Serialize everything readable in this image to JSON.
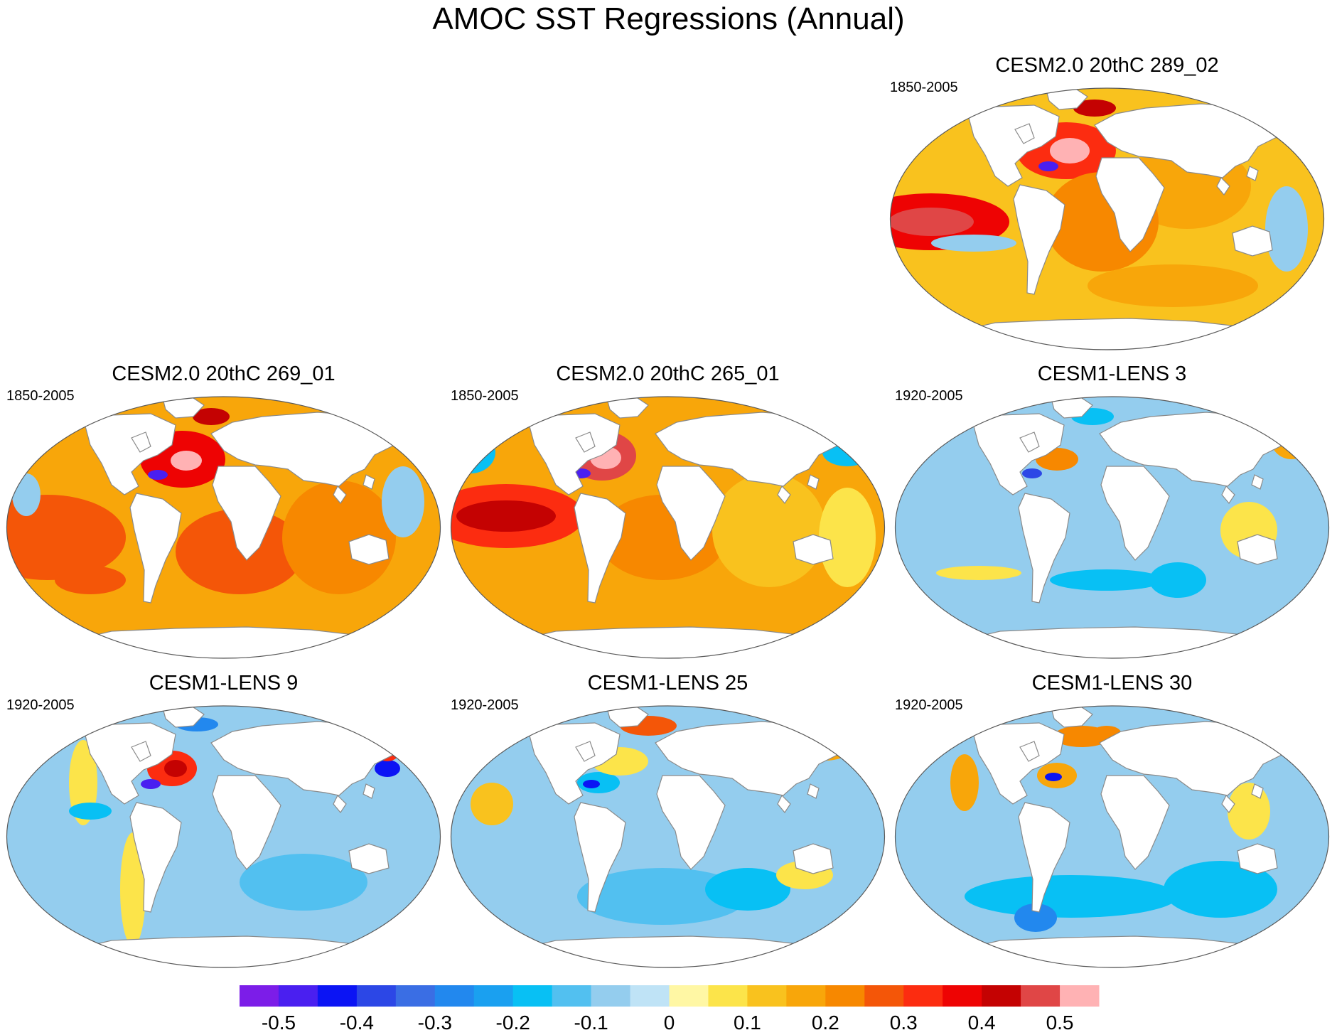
{
  "figure": {
    "title": "AMOC SST Regressions (Annual)"
  },
  "chart_data": [
    {
      "type": "heatmap",
      "panel": "top-right",
      "title": "CESM2.0 20thC 289_02",
      "period": "1850-2005",
      "projection": "Robinson (global)",
      "variable": "SST regression on AMOC",
      "features": [
        {
          "region": "Subpolar North Atlantic",
          "value": 0.45
        },
        {
          "region": "Nordic Seas",
          "value": 0.4
        },
        {
          "region": "Gulf Stream (off US coast)",
          "value": -0.5
        },
        {
          "region": "Eastern tropical Pacific",
          "value": 0.35
        },
        {
          "region": "Tropical Atlantic",
          "value": 0.15
        },
        {
          "region": "Indian Ocean",
          "value": 0.15
        },
        {
          "region": "Southern Ocean",
          "value": 0.1
        }
      ]
    },
    {
      "type": "heatmap",
      "panel": "middle-left",
      "title": "CESM2.0 20thC 269_01",
      "period": "1850-2005",
      "projection": "Robinson (global)",
      "variable": "SST regression on AMOC",
      "features": [
        {
          "region": "Subpolar North Atlantic",
          "value": 0.45
        },
        {
          "region": "Nordic Seas",
          "value": 0.4
        },
        {
          "region": "Gulf Stream (off US coast)",
          "value": -0.5
        },
        {
          "region": "Tropical Pacific",
          "value": 0.2
        },
        {
          "region": "South Atlantic",
          "value": 0.2
        },
        {
          "region": "Indian Ocean",
          "value": 0.15
        }
      ]
    },
    {
      "type": "heatmap",
      "panel": "middle-center",
      "title": "CESM2.0 20thC 265_01",
      "period": "1850-2005",
      "projection": "Robinson (global)",
      "variable": "SST regression on AMOC",
      "features": [
        {
          "region": "Subpolar North Atlantic",
          "value": 0.45
        },
        {
          "region": "Gulf Stream (off US coast)",
          "value": -0.5
        },
        {
          "region": "Eastern tropical Pacific",
          "value": 0.3
        },
        {
          "region": "North Pacific",
          "value": -0.2
        },
        {
          "region": "South Atlantic",
          "value": 0.15
        }
      ]
    },
    {
      "type": "heatmap",
      "panel": "middle-right",
      "title": "CESM1-LENS 3",
      "period": "1920-2005",
      "projection": "Robinson (global)",
      "variable": "SST regression on AMOC",
      "features": [
        {
          "region": "Subpolar North Atlantic",
          "value": 0.2
        },
        {
          "region": "Gulf Stream (off US coast)",
          "value": -0.4
        },
        {
          "region": "Global ocean",
          "value": -0.1
        },
        {
          "region": "Western Pacific",
          "value": 0.05
        }
      ]
    },
    {
      "type": "heatmap",
      "panel": "bottom-left",
      "title": "CESM1-LENS 9",
      "period": "1920-2005",
      "projection": "Robinson (global)",
      "variable": "SST regression on AMOC",
      "features": [
        {
          "region": "Subpolar North Atlantic",
          "value": 0.35
        },
        {
          "region": "Gulf Stream (off US coast)",
          "value": -0.4
        },
        {
          "region": "Kuroshio extension",
          "value": -0.45
        },
        {
          "region": "Labrador Sea",
          "value": -0.3
        },
        {
          "region": "Global ocean",
          "value": -0.1
        }
      ]
    },
    {
      "type": "heatmap",
      "panel": "bottom-center",
      "title": "CESM1-LENS 25",
      "period": "1920-2005",
      "projection": "Robinson (global)",
      "variable": "SST regression on AMOC",
      "features": [
        {
          "region": "Nordic Seas",
          "value": 0.25
        },
        {
          "region": "Gulf Stream (off US coast)",
          "value": -0.45
        },
        {
          "region": "North Pacific",
          "value": 0.15
        },
        {
          "region": "Southern Ocean",
          "value": -0.15
        },
        {
          "region": "Global ocean",
          "value": -0.1
        }
      ]
    },
    {
      "type": "heatmap",
      "panel": "bottom-right",
      "title": "CESM1-LENS 30",
      "period": "1920-2005",
      "projection": "Robinson (global)",
      "variable": "SST regression on AMOC",
      "features": [
        {
          "region": "Nordic Seas",
          "value": 0.2
        },
        {
          "region": "Subpolar North Atlantic",
          "value": 0.2
        },
        {
          "region": "Gulf Stream (off US coast)",
          "value": -0.45
        },
        {
          "region": "Southern Ocean",
          "value": -0.2
        },
        {
          "region": "Global ocean",
          "value": -0.15
        }
      ]
    }
  ],
  "colorbar": {
    "levels": [
      -0.55,
      -0.5,
      -0.45,
      -0.4,
      -0.35,
      -0.3,
      -0.25,
      -0.2,
      -0.15,
      -0.1,
      -0.05,
      0,
      0.05,
      0.1,
      0.15,
      0.2,
      0.25,
      0.3,
      0.35,
      0.4,
      0.45,
      0.5,
      0.55
    ],
    "colors": [
      "#7c1de8",
      "#4a1ff0",
      "#0b14f4",
      "#2c47e6",
      "#3a6ee4",
      "#2288ee",
      "#1aa0f0",
      "#08c0f4",
      "#52c0f0",
      "#94cdee",
      "#bfe3f6",
      "#fff7a4",
      "#fce44a",
      "#f9c21e",
      "#f8a60a",
      "#f78800",
      "#f45608",
      "#fc2c10",
      "#ee0303",
      "#c40202",
      "#e04646",
      "#ffb2b4"
    ],
    "tick_labels": [
      "-0.5",
      "-0.4",
      "-0.3",
      "-0.2",
      "-0.1",
      "0",
      "0.1",
      "0.2",
      "0.3",
      "0.4",
      "0.5"
    ],
    "tick_values": [
      -0.5,
      -0.4,
      -0.3,
      -0.2,
      -0.1,
      0,
      0.1,
      0.2,
      0.3,
      0.4,
      0.5
    ]
  },
  "palette": {
    "land": "#ffffff",
    "coast": "#8a8a8a",
    "border": "#5a5a5a"
  }
}
